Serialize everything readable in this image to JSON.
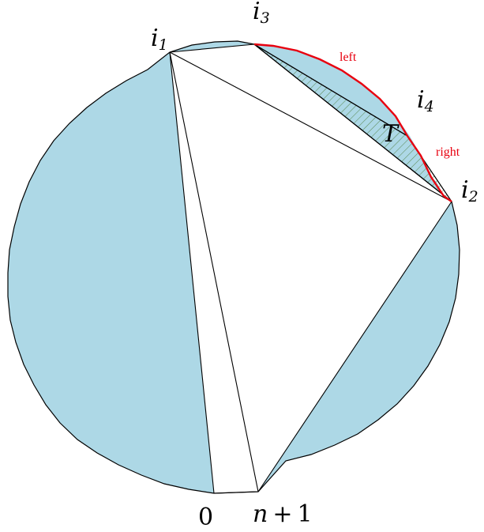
{
  "diagram": {
    "colors": {
      "region_fill": "#add8e6",
      "edge": "#000000",
      "highlight": "#e8000f",
      "hatch": "#5e8c5a",
      "background": "#ffffff"
    },
    "vertex_labels": {
      "i1": {
        "base": "i",
        "sub": "1"
      },
      "i2": {
        "base": "i",
        "sub": "2"
      },
      "i3": {
        "base": "i",
        "sub": "3"
      },
      "i4": {
        "base": "i",
        "sub": "4"
      },
      "zero": "0",
      "n_plus_1": {
        "n": "n",
        "plus": "+",
        "one": "1"
      }
    },
    "triangle_label": "T",
    "arc_labels": {
      "left": "left",
      "right": "right"
    }
  }
}
